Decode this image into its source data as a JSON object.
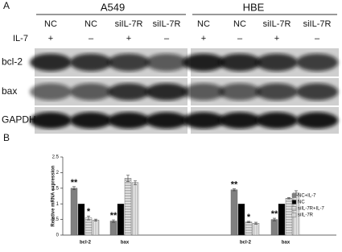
{
  "panel_a": {
    "label": "A",
    "cell_lines": [
      "A549",
      "HBE"
    ],
    "lanes": [
      [
        "NC",
        "NC",
        "siIL-7R",
        "siIL-7R"
      ],
      [
        "NC",
        "NC",
        "siIL-7R",
        "siIL-7R"
      ]
    ],
    "treatment_label": "IL-7",
    "treatment": [
      [
        "+",
        "–",
        "+",
        "–"
      ],
      [
        "+",
        "–",
        "+",
        "–"
      ]
    ],
    "blots": [
      "bcl-2",
      "bax",
      "GAPDH"
    ]
  },
  "chart_data": {
    "type": "bar",
    "panel_label": "B",
    "y_label": "Relative mRNA expression",
    "categories": [
      "bcl-2",
      "bax",
      "bcl-2",
      "bax"
    ],
    "ylim": [
      0,
      2.5
    ],
    "yticks": [
      0,
      0.5,
      1,
      1.5,
      2,
      2.5
    ],
    "series": [
      {
        "name": "NC+IL-7",
        "color": "#808080",
        "values": [
          1.5,
          0.45,
          1.45,
          0.5
        ],
        "errors": [
          0.05,
          0.04,
          0.03,
          0.04
        ],
        "annotations": [
          "**",
          "**",
          "**",
          "**"
        ]
      },
      {
        "name": "NC",
        "color": "#000000",
        "values": [
          1.0,
          1.0,
          1.0,
          1.0
        ]
      },
      {
        "name": "siIL-7R+IL-7",
        "color": "#d0d0d0",
        "values": [
          0.55,
          1.82,
          0.42,
          1.18
        ],
        "errors": [
          0.06,
          0.1,
          0.02,
          0.02
        ],
        "annotations": [
          "*",
          null,
          "*",
          null
        ]
      },
      {
        "name": "siIL-7R",
        "color": "#eeeeee",
        "values": [
          0.48,
          1.68,
          0.38,
          1.35
        ],
        "errors": [
          0.03,
          0.06,
          0.03,
          0.07
        ]
      }
    ]
  }
}
